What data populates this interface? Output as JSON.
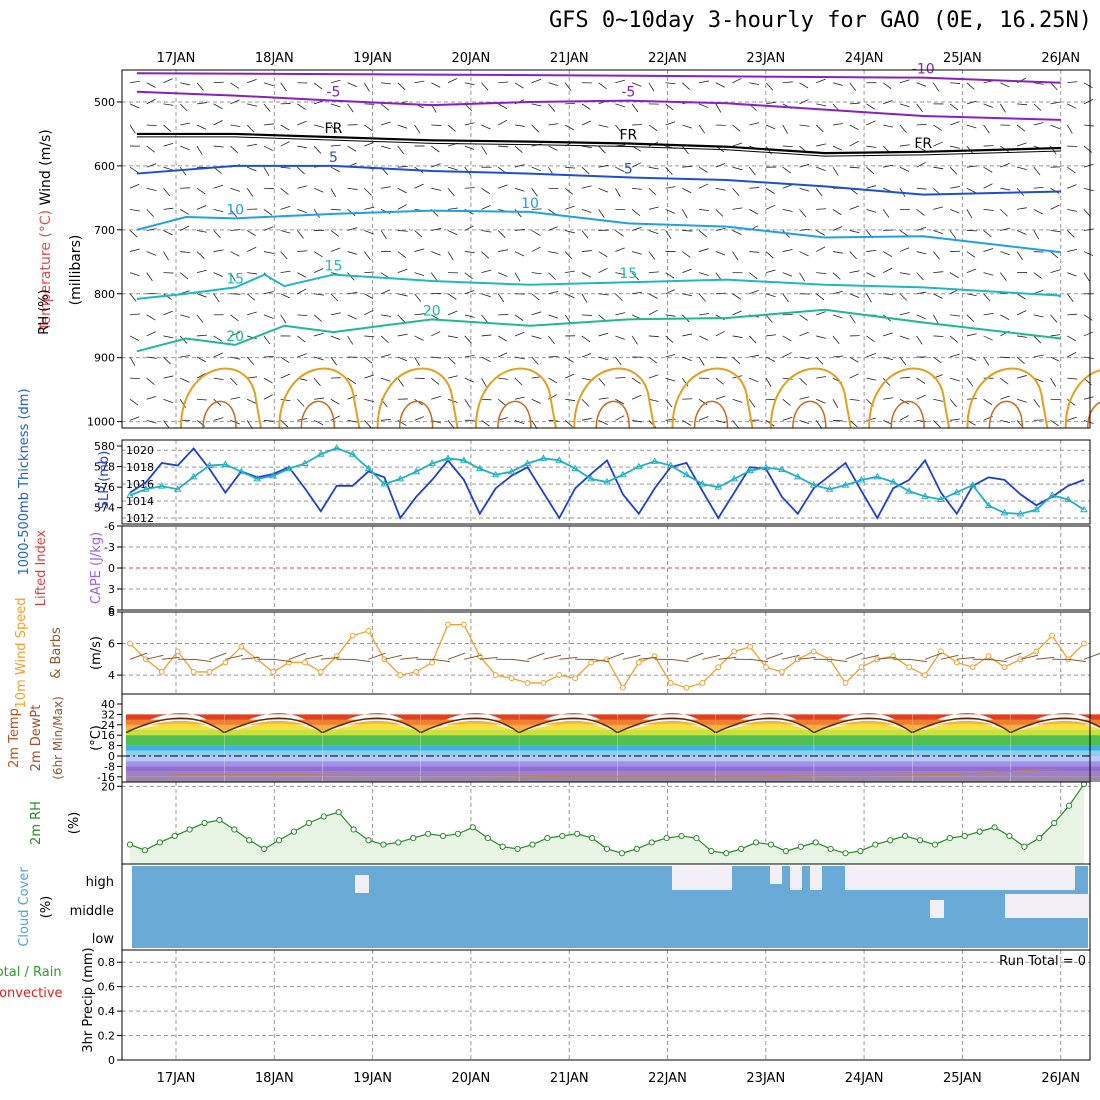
{
  "title": "GFS 0~10day 3-hourly for GAO (0E, 16.25N)",
  "date_labels": [
    "17JAN",
    "18JAN",
    "19JAN",
    "20JAN",
    "21JAN",
    "22JAN",
    "23JAN",
    "24JAN",
    "25JAN",
    "26JAN"
  ],
  "colors": {
    "grid": "#999999",
    "frame": "#000000",
    "temp_purple": "#8a1fc0",
    "temp_blue": "#1f4fd0",
    "temp_sky": "#1fa0e6",
    "temp_teal": "#20b8c0",
    "temp_green": "#20b890",
    "temp_orange": "#e0a020",
    "rh_gray": "#b8b8b8",
    "freezing": "#000000",
    "slp": "#1f3fd0",
    "thickness": "#20b0c0",
    "lifted": "#e04040",
    "cape": "#a060e0",
    "wind_speed": "#f0a030",
    "wind_barb": "#8a5a30",
    "rh2m": "#2a8a2a",
    "cloud": "#6aaad6",
    "precip_total": "#2aa02a",
    "precip_conv": "#e02020"
  },
  "chart_data": [
    {
      "panel": "upper-air",
      "type": "contour",
      "ylabel_parts": [
        "Wind (m/s)",
        "Temperature (°C)",
        "RH (%)",
        "(millibars)"
      ],
      "y_ticks": [
        500,
        600,
        700,
        800,
        900,
        1000
      ],
      "ylim": [
        450,
        1010
      ],
      "inverted": true,
      "freezing_label": "FR",
      "isotherms": [
        {
          "label": "-10",
          "labels_shown": [
            "-10"
          ],
          "color": "temp_purple",
          "points": [
            [
              0,
              455
            ],
            [
              4,
              458
            ],
            [
              8,
              462
            ],
            [
              9.4,
              470
            ]
          ]
        },
        {
          "label": "-5",
          "labels_shown": [
            "-5",
            "-5"
          ],
          "color": "temp_purple",
          "points": [
            [
              0,
              484
            ],
            [
              1,
              490
            ],
            [
              2,
              498
            ],
            [
              3,
              505
            ],
            [
              4,
              500
            ],
            [
              5,
              498
            ],
            [
              6,
              502
            ],
            [
              7,
              512
            ],
            [
              8,
              522
            ],
            [
              9.4,
              528
            ]
          ]
        },
        {
          "label": "FR",
          "labels_shown": [
            "FR",
            "FR",
            "FR"
          ],
          "color": "freezing",
          "points": [
            [
              0,
              550
            ],
            [
              1,
              550
            ],
            [
              2,
              555
            ],
            [
              3,
              560
            ],
            [
              4,
              562
            ],
            [
              5,
              565
            ],
            [
              6,
              570
            ],
            [
              7,
              580
            ],
            [
              8,
              578
            ],
            [
              9.4,
              572
            ]
          ]
        },
        {
          "label": "-5 (600)",
          "labels_shown": [
            "5",
            "5"
          ],
          "color": "temp_blue",
          "points": [
            [
              0,
              612
            ],
            [
              1,
              600
            ],
            [
              2,
              600
            ],
            [
              3,
              608
            ],
            [
              4,
              612
            ],
            [
              5,
              618
            ],
            [
              6,
              622
            ],
            [
              7,
              632
            ],
            [
              8,
              645
            ],
            [
              9.4,
              640
            ]
          ]
        },
        {
          "label": "10",
          "labels_shown": [
            "10",
            "10"
          ],
          "color": "temp_sky",
          "points": [
            [
              0,
              700
            ],
            [
              0.5,
              680
            ],
            [
              1,
              682
            ],
            [
              2,
              675
            ],
            [
              3,
              670
            ],
            [
              4,
              672
            ],
            [
              5,
              690
            ],
            [
              6,
              695
            ],
            [
              7,
              712
            ],
            [
              8,
              710
            ],
            [
              9.4,
              735
            ]
          ]
        },
        {
          "label": "15",
          "labels_shown": [
            "15",
            "15",
            "15"
          ],
          "color": "temp_teal",
          "points": [
            [
              0,
              808
            ],
            [
              0.5,
              800
            ],
            [
              1,
              790
            ],
            [
              1.3,
              770
            ],
            [
              1.5,
              788
            ],
            [
              2,
              770
            ],
            [
              3,
              780
            ],
            [
              4,
              786
            ],
            [
              5,
              782
            ],
            [
              6,
              778
            ],
            [
              7,
              786
            ],
            [
              8,
              790
            ],
            [
              9.4,
              803
            ]
          ]
        },
        {
          "label": "20",
          "labels_shown": [
            "20",
            "20"
          ],
          "color": "temp_green",
          "points": [
            [
              0,
              890
            ],
            [
              0.5,
              870
            ],
            [
              1,
              880
            ],
            [
              1.5,
              850
            ],
            [
              2,
              860
            ],
            [
              3,
              840
            ],
            [
              4,
              850
            ],
            [
              5,
              840
            ],
            [
              6,
              838
            ],
            [
              7,
              825
            ],
            [
              8,
              845
            ],
            [
              9.4,
              870
            ]
          ]
        }
      ]
    },
    {
      "panel": "slp-thickness",
      "type": "line",
      "ylabel_left": "1000-500mb Thickness (dm)",
      "ylabel_right": "SLP (mb)",
      "left_ticks": [
        574,
        576,
        578,
        580
      ],
      "right_ticks": [
        1012,
        1014,
        1016,
        1018,
        1020
      ],
      "series": [
        {
          "name": "SLP (mb)",
          "color": "slp",
          "axis": "right",
          "values": [
            1015.0,
            1016.2,
            1018.5,
            1018.2,
            1020.2,
            1017.8,
            1015.0,
            1017.5,
            1016.8,
            1017.2,
            1018.0,
            1015.5,
            1012.8,
            1015.8,
            1015.8,
            1017.5,
            1016.8,
            1012.0,
            1014.5,
            1016.5,
            1018.8,
            1016.5,
            1012.5,
            1015.5,
            1017.0,
            1018.0,
            1015.0,
            1012.0,
            1015.5,
            1017.2,
            1018.8,
            1014.8,
            1012.5,
            1015.5,
            1018.0,
            1018.5,
            1015.2,
            1012.0,
            1015.0,
            1018.0,
            1017.8,
            1014.5,
            1012.5,
            1015.5,
            1017.0,
            1018.5,
            1015.2,
            1012.0,
            1015.5,
            1016.5,
            1018.8,
            1015.0,
            1012.5,
            1015.8,
            1016.8,
            1016.5,
            1014.8,
            1013.5,
            1014.5,
            1015.8,
            1016.5
          ]
        },
        {
          "name": "Thickness (dm)",
          "color": "thickness",
          "axis": "left",
          "values": [
            575.2,
            575.8,
            576.1,
            575.8,
            577.0,
            578.1,
            578.2,
            577.5,
            576.8,
            577.1,
            577.8,
            578.3,
            579.2,
            579.8,
            579.2,
            577.8,
            576.3,
            576.8,
            577.5,
            578.3,
            578.8,
            578.6,
            577.8,
            577.2,
            577.5,
            578.3,
            578.8,
            578.6,
            577.8,
            576.8,
            576.5,
            577.2,
            578.0,
            578.5,
            578.1,
            577.2,
            576.3,
            576.0,
            576.8,
            577.6,
            577.9,
            577.7,
            577.0,
            576.2,
            575.8,
            576.2,
            576.7,
            577.0,
            576.5,
            575.6,
            575.1,
            574.8,
            575.5,
            576.2,
            574.2,
            573.5,
            573.4,
            573.8,
            575.2,
            574.8,
            573.8
          ]
        }
      ]
    },
    {
      "panel": "lifted-cape",
      "type": "line",
      "ylabel_left": "Lifted Index",
      "ylabel_right": "CAPE (J/kg)",
      "y_ticks": [
        "-6",
        "-3",
        "0",
        "3",
        "6"
      ],
      "series": []
    },
    {
      "panel": "wind10m",
      "type": "line",
      "ylabel_parts": [
        "10m Wind Speed",
        "& Barbs",
        "(m/s)"
      ],
      "y_ticks": [
        4,
        6,
        8
      ],
      "ylim": [
        2.8,
        8.0
      ],
      "series": [
        {
          "name": "10m Wind Speed",
          "color": "wind_speed",
          "values": [
            6.0,
            5.0,
            4.2,
            5.5,
            4.2,
            4.2,
            4.8,
            5.8,
            5.0,
            4.2,
            4.8,
            4.8,
            4.2,
            5.2,
            6.5,
            6.8,
            5.0,
            4.0,
            4.2,
            4.8,
            7.2,
            7.2,
            5.2,
            4.0,
            3.8,
            3.5,
            3.5,
            4.0,
            3.8,
            4.8,
            5.0,
            3.2,
            4.8,
            5.2,
            3.5,
            3.2,
            3.5,
            4.5,
            5.5,
            5.8,
            4.5,
            4.2,
            5.0,
            5.5,
            5.0,
            3.5,
            4.5,
            5.0,
            5.2,
            4.5,
            4.0,
            5.5,
            4.8,
            4.5,
            5.2,
            4.5,
            5.0,
            5.5,
            6.5,
            5.0,
            6.0
          ]
        }
      ]
    },
    {
      "panel": "temp2m",
      "type": "area",
      "ylabel_parts": [
        "2m Temp",
        "2m DewPt",
        "(6hr Min/Max)",
        "(°C)"
      ],
      "y_ticks": [
        "-16",
        "-8",
        "0",
        "8",
        "16",
        "24",
        "32",
        "40"
      ],
      "series": [
        {
          "name": "2m Temp",
          "daily_min": 18,
          "daily_max": 32
        },
        {
          "name": "2m DewPt",
          "values_approx": [
            -14,
            -14,
            -15,
            -15,
            -16,
            -16,
            -16,
            -15,
            -14,
            -10
          ]
        }
      ]
    },
    {
      "panel": "rh2m",
      "type": "area",
      "ylabel_parts": [
        "2m RH",
        "(%)"
      ],
      "y_ticks": [
        20
      ],
      "ylim": [
        2,
        21
      ],
      "series": [
        {
          "name": "2m RH",
          "color": "rh2m",
          "values": [
            6.5,
            5.2,
            7.0,
            8.5,
            10.0,
            11.5,
            12.2,
            10.0,
            7.5,
            5.5,
            7.5,
            9.5,
            11.5,
            13.0,
            14.0,
            10.0,
            7.5,
            6.5,
            7.0,
            8.0,
            9.0,
            8.5,
            9.0,
            10.5,
            8.0,
            6.0,
            5.5,
            6.5,
            8.0,
            8.5,
            9.0,
            8.0,
            5.5,
            4.5,
            5.5,
            7.0,
            8.0,
            8.5,
            8.0,
            5.0,
            4.5,
            5.5,
            7.0,
            6.5,
            5.0,
            6.0,
            7.0,
            5.5,
            4.5,
            5.0,
            6.5,
            7.5,
            8.5,
            7.5,
            6.5,
            8.0,
            8.5,
            9.5,
            10.5,
            8.5,
            6.0,
            8.0,
            11.5,
            15.5,
            20.5
          ]
        }
      ]
    },
    {
      "panel": "cloud",
      "type": "heatmap",
      "ylabel_parts": [
        "Cloud Cover",
        "(%)"
      ],
      "levels": [
        "high",
        "middle",
        "low"
      ],
      "series": []
    },
    {
      "panel": "precip",
      "type": "bar",
      "ylabel_parts": [
        "Total / Rain",
        "Convective",
        "3hr Precip (mm)"
      ],
      "y_ticks": [
        "0",
        "0.2",
        "0.4",
        "0.6",
        "0.8"
      ],
      "ylim": [
        0,
        0.9
      ],
      "annotation": "Run Total = 0",
      "series": [
        {
          "name": "Total / Rain",
          "values": []
        },
        {
          "name": "Convective",
          "values": []
        }
      ]
    }
  ]
}
